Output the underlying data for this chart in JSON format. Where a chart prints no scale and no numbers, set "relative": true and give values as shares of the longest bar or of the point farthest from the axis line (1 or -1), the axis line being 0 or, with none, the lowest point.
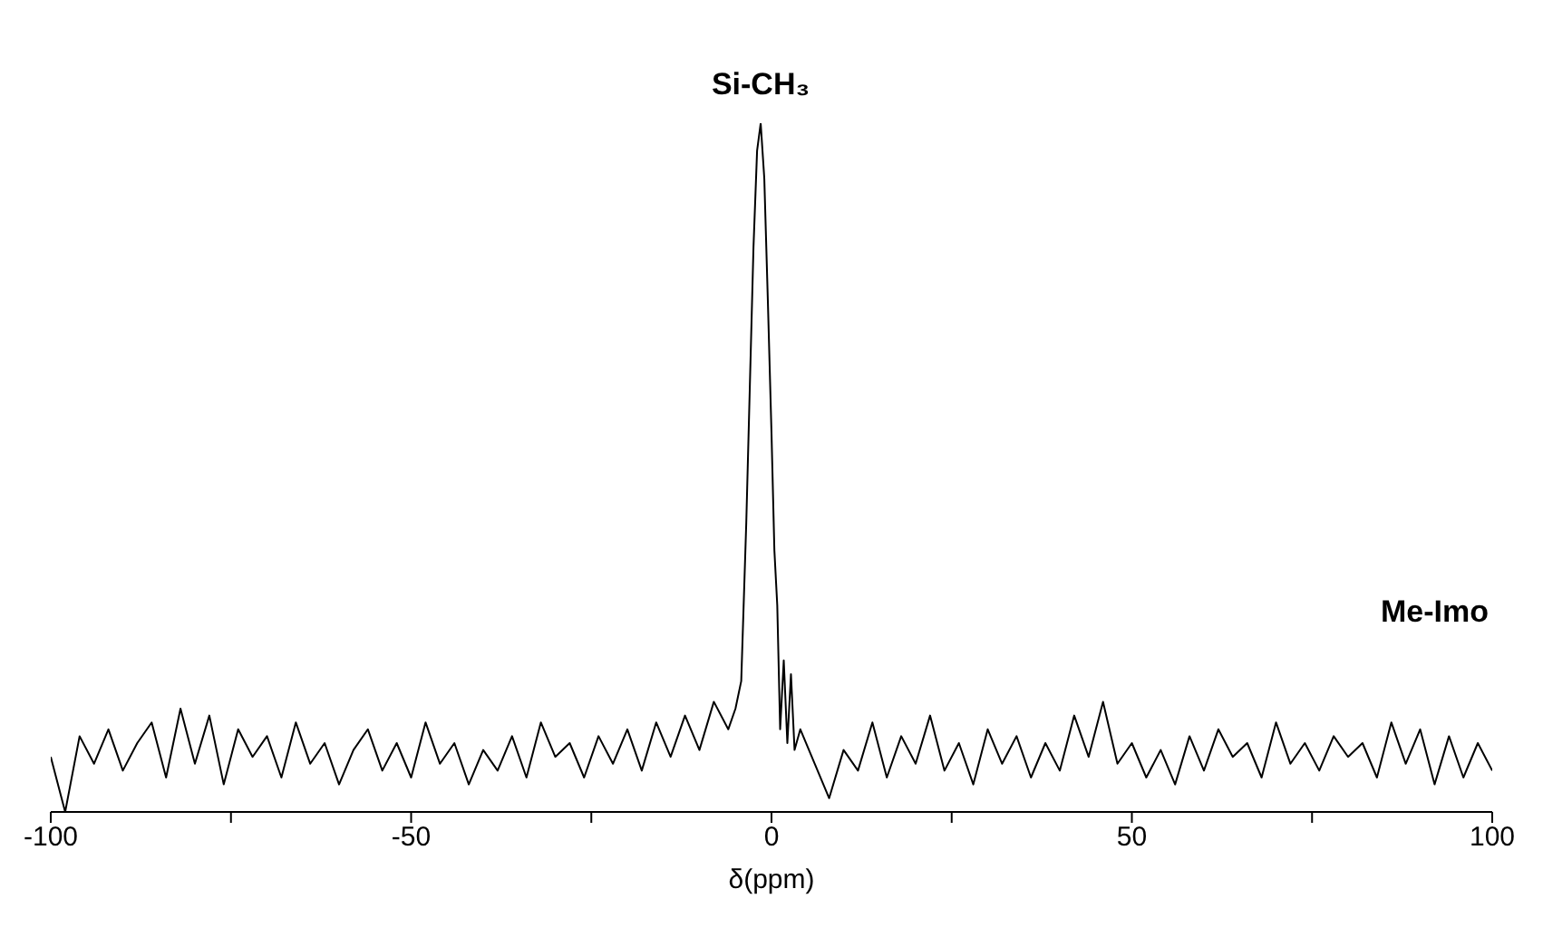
{
  "chart_data": {
    "type": "line",
    "relative": true,
    "xlabel": "δ(ppm)",
    "xlim": [
      -100,
      100
    ],
    "xticks": [
      -100,
      {
        "value": -75,
        "label": null
      },
      -50,
      {
        "value": -25,
        "label": null
      },
      0,
      {
        "value": 25,
        "label": null
      },
      50,
      {
        "value": 75,
        "label": null
      },
      100
    ],
    "marker": "none",
    "line_style": "solid",
    "annotations": [
      {
        "text": "Si-CH₃",
        "x": -1.5,
        "y": 1
      },
      "Me-Imo"
    ],
    "series": [
      {
        "color": "#000000",
        "x": [
          -100,
          -98,
          -96,
          -94,
          -92,
          -90,
          -88,
          -86,
          -84,
          -82,
          -80,
          -78,
          -76,
          -74,
          -72,
          -70,
          -68,
          -66,
          -64,
          -62,
          -60,
          -58,
          -56,
          -54,
          -52,
          -50,
          -48,
          -46,
          -44,
          -42,
          -40,
          -38,
          -36,
          -34,
          -32,
          -30,
          -28,
          -26,
          -24,
          -22,
          -20,
          -18,
          -16,
          -14,
          -12,
          -10,
          -8,
          -6,
          -5,
          -4.2,
          -3.5,
          -3,
          -2.5,
          -2,
          -1.5,
          -1,
          -0.5,
          0,
          0.4,
          0.8,
          1.2,
          1.7,
          2.2,
          2.7,
          3.2,
          4,
          6,
          8,
          10,
          12,
          14,
          16,
          18,
          20,
          22,
          24,
          26,
          28,
          30,
          32,
          34,
          36,
          38,
          40,
          42,
          44,
          46,
          48,
          50,
          52,
          54,
          56,
          58,
          60,
          62,
          64,
          66,
          68,
          70,
          72,
          74,
          76,
          78,
          80,
          82,
          84,
          86,
          88,
          90,
          92,
          94,
          96,
          98,
          100
        ],
        "values": [
          0.08,
          0.0,
          0.11,
          0.07,
          0.12,
          0.06,
          0.1,
          0.13,
          0.05,
          0.15,
          0.07,
          0.14,
          0.04,
          0.12,
          0.08,
          0.11,
          0.05,
          0.13,
          0.07,
          0.1,
          0.04,
          0.09,
          0.12,
          0.06,
          0.1,
          0.05,
          0.13,
          0.07,
          0.1,
          0.04,
          0.09,
          0.06,
          0.11,
          0.05,
          0.13,
          0.08,
          0.1,
          0.05,
          0.11,
          0.07,
          0.12,
          0.06,
          0.13,
          0.08,
          0.14,
          0.09,
          0.16,
          0.12,
          0.15,
          0.19,
          0.42,
          0.62,
          0.82,
          0.96,
          1,
          0.92,
          0.74,
          0.55,
          0.38,
          0.3,
          0.12,
          0.22,
          0.1,
          0.2,
          0.09,
          0.12,
          0.07,
          0.02,
          0.09,
          0.06,
          0.13,
          0.05,
          0.11,
          0.07,
          0.14,
          0.06,
          0.1,
          0.04,
          0.12,
          0.07,
          0.11,
          0.05,
          0.1,
          0.06,
          0.14,
          0.08,
          0.16,
          0.07,
          0.1,
          0.05,
          0.09,
          0.04,
          0.11,
          0.06,
          0.12,
          0.08,
          0.1,
          0.05,
          0.13,
          0.07,
          0.1,
          0.06,
          0.11,
          0.08,
          0.1,
          0.05,
          0.13,
          0.07,
          0.12,
          0.04,
          0.11,
          0.05,
          0.1,
          0.06
        ]
      }
    ]
  }
}
